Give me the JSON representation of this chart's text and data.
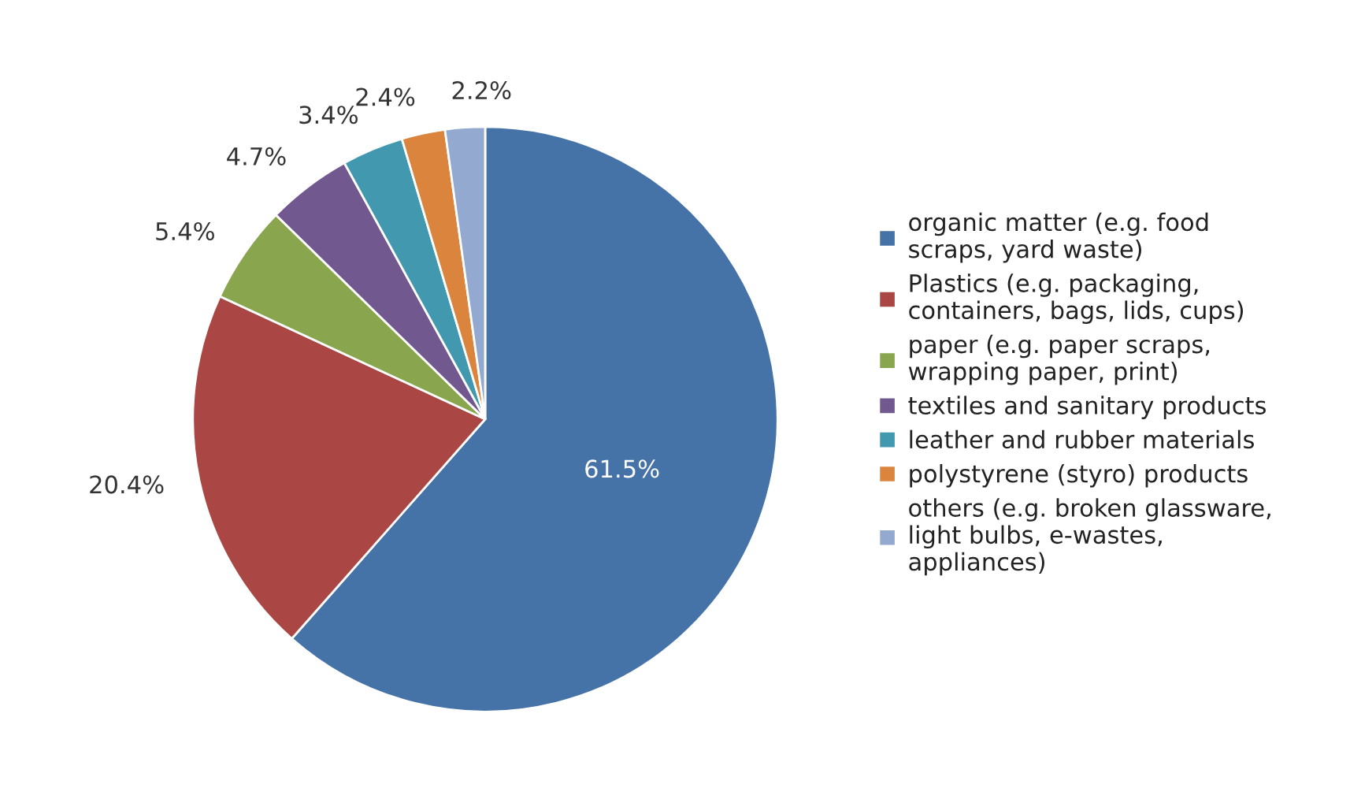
{
  "chart_data": {
    "type": "pie",
    "categories": [
      "organic matter (e.g. food\nscraps, yard waste)",
      "Plastics (e.g. packaging,\ncontainers, bags, lids, cups)",
      "paper (e.g. paper scraps,\nwrapping paper, print)",
      "textiles and sanitary products",
      "leather and rubber materials",
      "polystyrene (styro) products",
      "others (e.g. broken glassware,\nlight bulbs, e-wastes,\nappliances)"
    ],
    "values": [
      61.5,
      20.4,
      5.4,
      4.7,
      3.4,
      2.4,
      2.2
    ],
    "colors": [
      "#4572a7",
      "#aa4643",
      "#89a54e",
      "#71588f",
      "#4198af",
      "#db843d",
      "#93a9cf"
    ],
    "value_labels": [
      "61.5%",
      "20.4%",
      "5.4%",
      "4.7%",
      "3.4%",
      "2.4%",
      "2.2%"
    ],
    "legend": "right"
  }
}
